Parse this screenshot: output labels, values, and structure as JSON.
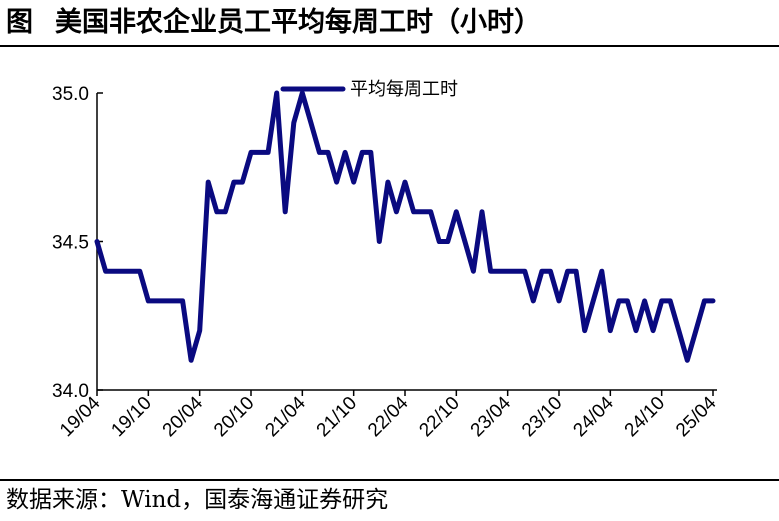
{
  "title": {
    "fig_label": "图",
    "text": "美国非农企业员工平均每周工时（小时）"
  },
  "source": {
    "text": "数据来源：Wind，国泰海通证券研究"
  },
  "colors": {
    "series": "#0a0a80",
    "axis": "#000000"
  },
  "chart_data": {
    "type": "line",
    "title": "美国非农企业员工平均每周工时（小时）",
    "xlabel": "",
    "ylabel": "",
    "ylim": [
      34.0,
      35.0
    ],
    "yticks": [
      "34.0",
      "34.5",
      "35.0"
    ],
    "xticks": [
      "19/04",
      "19/10",
      "20/04",
      "20/10",
      "21/04",
      "21/10",
      "22/04",
      "22/10",
      "23/04",
      "23/10",
      "24/04",
      "24/10",
      "25/04"
    ],
    "grid": false,
    "legend": "top",
    "x": [
      "2019-04",
      "2019-05",
      "2019-06",
      "2019-07",
      "2019-08",
      "2019-09",
      "2019-10",
      "2019-11",
      "2019-12",
      "2020-01",
      "2020-02",
      "2020-03",
      "2020-04",
      "2020-05",
      "2020-06",
      "2020-07",
      "2020-08",
      "2020-09",
      "2020-10",
      "2020-11",
      "2020-12",
      "2021-01",
      "2021-02",
      "2021-03",
      "2021-04",
      "2021-05",
      "2021-06",
      "2021-07",
      "2021-08",
      "2021-09",
      "2021-10",
      "2021-11",
      "2021-12",
      "2022-01",
      "2022-02",
      "2022-03",
      "2022-04",
      "2022-05",
      "2022-06",
      "2022-07",
      "2022-08",
      "2022-09",
      "2022-10",
      "2022-11",
      "2022-12",
      "2023-01",
      "2023-02",
      "2023-03",
      "2023-04",
      "2023-05",
      "2023-06",
      "2023-07",
      "2023-08",
      "2023-09",
      "2023-10",
      "2023-11",
      "2023-12",
      "2024-01",
      "2024-02",
      "2024-03",
      "2024-04",
      "2024-05",
      "2024-06",
      "2024-07",
      "2024-08",
      "2024-09",
      "2024-10",
      "2024-11",
      "2024-12",
      "2025-01",
      "2025-02",
      "2025-03",
      "2025-04"
    ],
    "series": [
      {
        "name": "平均每周工时",
        "values": [
          34.5,
          34.4,
          34.4,
          34.4,
          34.4,
          34.4,
          34.3,
          34.3,
          34.3,
          34.3,
          34.3,
          34.1,
          34.2,
          34.7,
          34.6,
          34.6,
          34.7,
          34.7,
          34.8,
          34.8,
          34.8,
          35.0,
          34.6,
          34.9,
          35.0,
          34.9,
          34.8,
          34.8,
          34.7,
          34.8,
          34.7,
          34.8,
          34.8,
          34.5,
          34.7,
          34.6,
          34.7,
          34.6,
          34.6,
          34.6,
          34.5,
          34.5,
          34.6,
          34.5,
          34.4,
          34.6,
          34.4,
          34.4,
          34.4,
          34.4,
          34.4,
          34.3,
          34.4,
          34.4,
          34.3,
          34.4,
          34.4,
          34.2,
          34.3,
          34.4,
          34.2,
          34.3,
          34.3,
          34.2,
          34.3,
          34.2,
          34.3,
          34.3,
          34.2,
          34.1,
          34.2,
          34.3,
          34.3
        ]
      }
    ]
  }
}
